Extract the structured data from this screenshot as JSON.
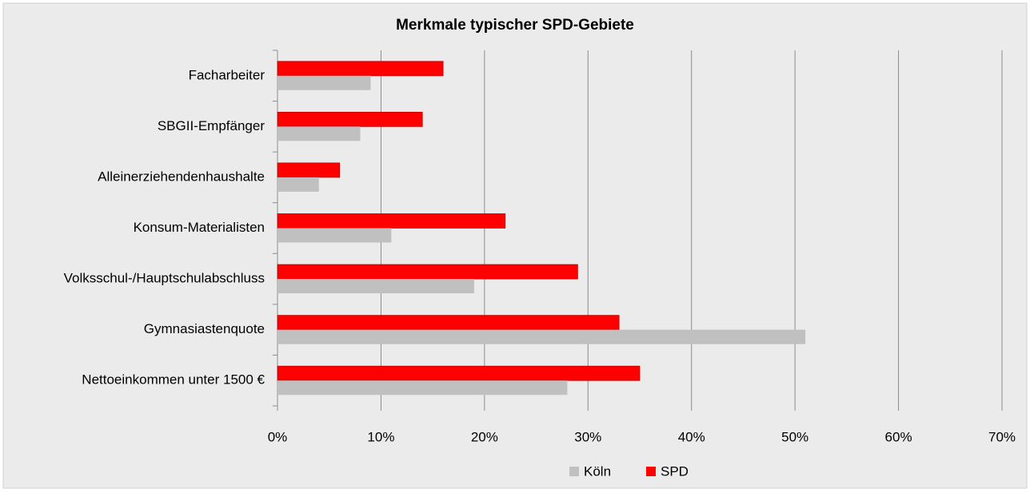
{
  "chart_data": {
    "type": "hbar",
    "title": "Merkmale typischer SPD-Gebiete",
    "categories": [
      "Facharbeiter",
      "SBGII-Empfänger",
      "Alleinerziehendenhaushalte",
      "Konsum-Materialisten",
      "Volksschul-/Hauptschulabschluss",
      "Gymnasiastenquote",
      "Nettoeinkommen unter 1500 €"
    ],
    "series": [
      {
        "name": "Köln",
        "color": "#c0c0c0",
        "values": [
          9,
          8,
          4,
          11,
          19,
          51,
          28
        ]
      },
      {
        "name": "SPD",
        "color": "#ff0000",
        "values": [
          16,
          14,
          6,
          22,
          29,
          33,
          35
        ]
      }
    ],
    "xlim": [
      0,
      70
    ],
    "xticks": [
      {
        "value": 0,
        "label": "0%"
      },
      {
        "value": 10,
        "label": "10%"
      },
      {
        "value": 20,
        "label": "20%"
      },
      {
        "value": 30,
        "label": "30%"
      },
      {
        "value": 40,
        "label": "40%"
      },
      {
        "value": 50,
        "label": "50%"
      },
      {
        "value": 60,
        "label": "60%"
      },
      {
        "value": 70,
        "label": "70%"
      }
    ],
    "grid": true,
    "legend": "bottom"
  }
}
